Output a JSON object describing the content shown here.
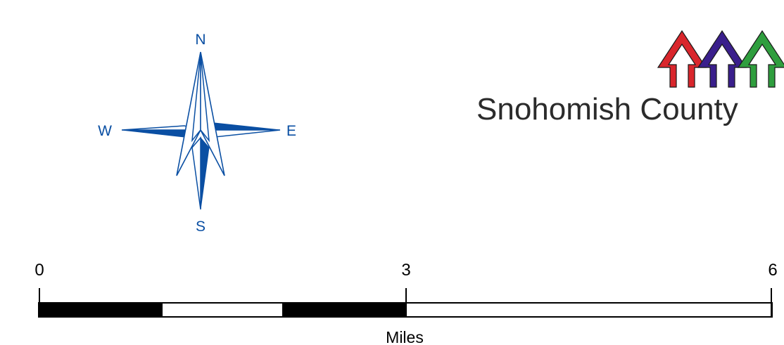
{
  "compass": {
    "north_label": "N",
    "south_label": "S",
    "east_label": "E",
    "west_label": "W",
    "color": "#0a4fa3"
  },
  "logo": {
    "text": "Snohomish County",
    "arrow_colors": [
      "#d9262c",
      "#3a1f8c",
      "#2f9e3e"
    ]
  },
  "scale_bar": {
    "tick_labels": [
      "0",
      "3",
      "6"
    ],
    "units": "Miles",
    "segments": [
      "black",
      "white",
      "black",
      "white"
    ],
    "max_value": 6
  }
}
